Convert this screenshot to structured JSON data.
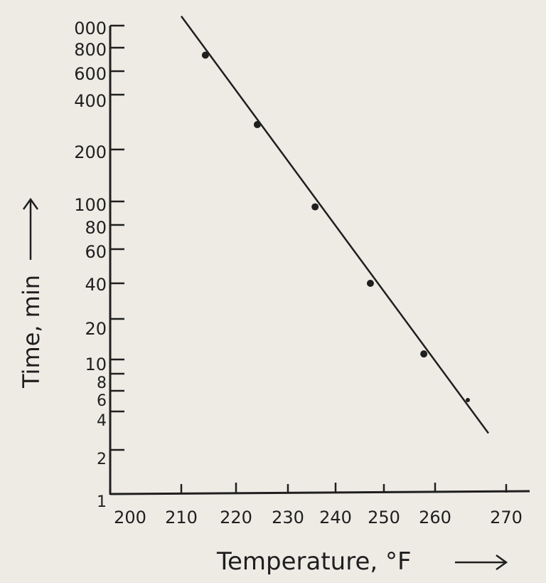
{
  "chart_data": {
    "type": "scatter",
    "title": "",
    "xlabel": "Temperature, °F",
    "ylabel": "Time, min",
    "x_scale": "linear",
    "y_scale": "log",
    "xlim": [
      200,
      270
    ],
    "ylim": [
      1,
      1000
    ],
    "grid": false,
    "x_tick_labels": [
      "200",
      "210",
      "220",
      "230",
      "240",
      "250",
      "260",
      "270"
    ],
    "y_tick_labels": [
      "000",
      "800",
      "600",
      "400",
      "200",
      "100",
      "80",
      "60",
      "40",
      "20",
      "10",
      "8",
      "6",
      "4",
      "2",
      "1"
    ],
    "points": [
      {
        "x": 214.4,
        "y": 730
      },
      {
        "x": 224.1,
        "y": 274
      },
      {
        "x": 235.7,
        "y": 95
      },
      {
        "x": 247.2,
        "y": 40
      },
      {
        "x": 257.8,
        "y": 11
      },
      {
        "x": 264.6,
        "y": 5
      }
    ],
    "fit_line": {
      "x": [
        210,
        267.5
      ],
      "y": [
        1100,
        2.7
      ]
    },
    "colors": {
      "ink": "#1f1f1f",
      "paper": "#eeebe5"
    }
  }
}
